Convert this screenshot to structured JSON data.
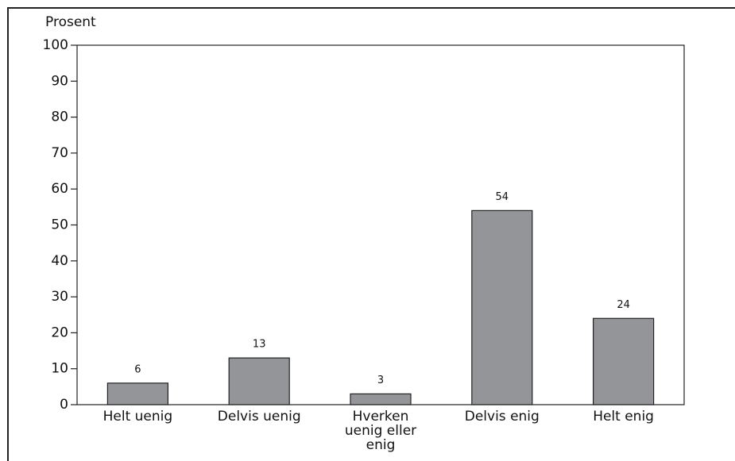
{
  "chart_data": {
    "type": "bar",
    "y_label": "Prosent",
    "categories": [
      "Helt uenig",
      "Delvis uenig",
      "Hverken uenig eller enig",
      "Delvis enig",
      "Helt enig"
    ],
    "values": [
      6,
      13,
      3,
      54,
      24
    ],
    "color": "#939598",
    "ylim": [
      0,
      100
    ],
    "yticks": [
      0,
      10,
      20,
      30,
      40,
      50,
      60,
      70,
      80,
      90,
      100
    ],
    "grid": false
  }
}
